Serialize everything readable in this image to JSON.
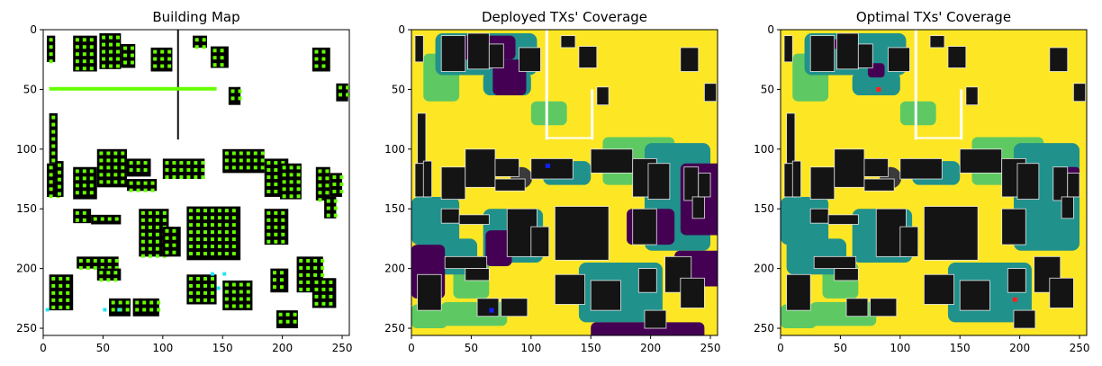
{
  "colors": {
    "yellow": "#fde725",
    "green": "#5ec962",
    "teal": "#21918c",
    "purple": "#440154",
    "building": "#141414",
    "lime": "#66ff00",
    "cyan": "#22e6f2",
    "blue": "#1020ff",
    "red": "#ff2020"
  },
  "chart_data": [
    {
      "type": "heatmap",
      "title": "Building Map",
      "xticks": [
        0,
        50,
        100,
        150,
        200,
        250
      ],
      "yticks": [
        0,
        50,
        100,
        150,
        200,
        250
      ],
      "xlim": [
        0,
        256
      ],
      "ylim": [
        256,
        0
      ]
    },
    {
      "type": "heatmap",
      "title": "Deployed TXs' Coverage",
      "xticks": [
        0,
        50,
        100,
        150,
        200,
        250
      ],
      "yticks": [
        0,
        50,
        100,
        150,
        200,
        250
      ],
      "xlim": [
        0,
        256
      ],
      "ylim": [
        256,
        0
      ],
      "transmitters": [
        {
          "x": 114,
          "y": 114
        },
        {
          "x": 67,
          "y": 235
        }
      ]
    },
    {
      "type": "heatmap",
      "title": "Optimal TXs' Coverage",
      "xticks": [
        0,
        50,
        100,
        150,
        200,
        250
      ],
      "yticks": [
        0,
        50,
        100,
        150,
        200,
        250
      ],
      "xlim": [
        0,
        256
      ],
      "ylim": [
        256,
        0
      ],
      "transmitters": [
        {
          "x": 82,
          "y": 50
        },
        {
          "x": 196,
          "y": 226
        }
      ]
    }
  ]
}
